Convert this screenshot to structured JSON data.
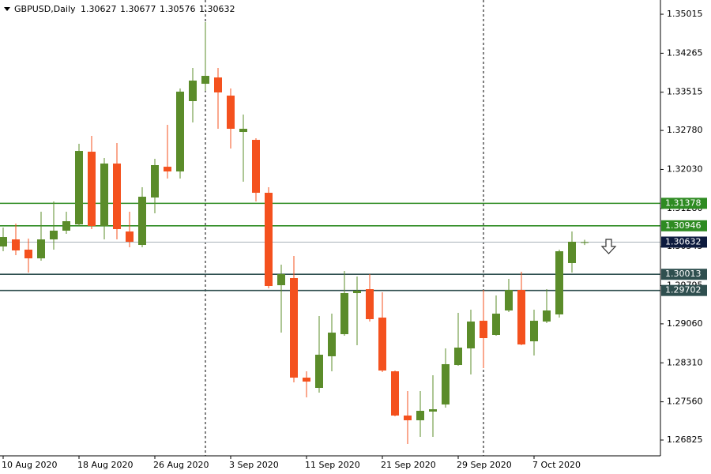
{
  "chart_data": {
    "type": "candlestick",
    "symbol": "GBPUSD,Daily",
    "categories": [
      "10 Aug 2020",
      null,
      null,
      null,
      null,
      null,
      "18 Aug 2020",
      null,
      null,
      null,
      null,
      null,
      "26 Aug 2020",
      null,
      null,
      null,
      null,
      null,
      "3 Sep 2020",
      null,
      null,
      null,
      null,
      null,
      "11 Sep 2020",
      null,
      null,
      null,
      null,
      null,
      "21 Sep 2020",
      null,
      null,
      null,
      null,
      null,
      "29 Sep 2020",
      null,
      null,
      null,
      null,
      null,
      "7 Oct 2020",
      null,
      null,
      null,
      null
    ],
    "open": [
      1.30548,
      1.30684,
      1.30487,
      1.3032,
      1.30684,
      1.30852,
      1.30973,
      1.32371,
      1.30943,
      1.32143,
      1.30836,
      1.30578,
      1.3149,
      1.32082,
      1.31991,
      1.33344,
      1.33678,
      1.33799,
      1.3345,
      1.32751,
      1.32599,
      1.31581,
      1.29803,
      1.2994,
      1.28025,
      1.27828,
      1.28436,
      1.28861,
      1.29651,
      1.29727,
      1.2918,
      1.28147,
      1.27296,
      1.27205,
      1.27372,
      1.27509,
      1.28268,
      1.28588,
      1.29119,
      1.28846,
      1.29317,
      1.29712,
      1.28724,
      1.29104,
      1.29241,
      1.30229,
      1.30627
    ],
    "high": [
      1.30912,
      1.30988,
      1.307,
      1.31216,
      1.31414,
      1.31216,
      1.32523,
      1.32675,
      1.3225,
      1.32538,
      1.31216,
      1.31687,
      1.32234,
      1.32888,
      1.33587,
      1.33982,
      1.34863,
      1.33982,
      1.33587,
      1.33085,
      1.32629,
      1.31687,
      1.30198,
      1.30365,
      1.28147,
      1.29211,
      1.29256,
      1.30077,
      1.2997,
      1.30016,
      1.29666,
      1.28162,
      1.27767,
      1.27767,
      1.28071,
      1.28588,
      1.29271,
      1.29332,
      1.29712,
      1.29606,
      1.29925,
      1.30061,
      1.29332,
      1.29727,
      1.30487,
      1.30836,
      1.30677
    ],
    "low": [
      1.30456,
      1.30381,
      1.30046,
      1.30274,
      1.30487,
      1.30791,
      1.30943,
      1.30882,
      1.30684,
      1.30684,
      1.30532,
      1.30532,
      1.31186,
      1.31854,
      1.31854,
      1.32933,
      1.33541,
      1.32812,
      1.32432,
      1.31794,
      1.31414,
      1.29742,
      1.28891,
      1.27934,
      1.27645,
      1.27737,
      1.28147,
      1.28831,
      1.28648,
      1.29104,
      1.28132,
      1.27281,
      1.26749,
      1.26886,
      1.26886,
      1.27448,
      1.28253,
      1.28086,
      1.28208,
      1.28831,
      1.29286,
      1.28648,
      1.28451,
      1.29074,
      1.2918,
      1.30046,
      1.30576
    ],
    "close": [
      1.3073,
      1.30472,
      1.3032,
      1.30684,
      1.30852,
      1.31034,
      1.32386,
      1.30943,
      1.32143,
      1.30882,
      1.30639,
      1.31505,
      1.32113,
      1.31991,
      1.33526,
      1.33739,
      1.3383,
      1.33511,
      1.32812,
      1.32812,
      1.31581,
      1.29788,
      1.30016,
      1.28025,
      1.27949,
      1.28466,
      1.28891,
      1.29651,
      1.29697,
      1.2915,
      1.28162,
      1.27296,
      1.27205,
      1.27387,
      1.27417,
      1.28284,
      1.28603,
      1.29104,
      1.28785,
      1.29256,
      1.29712,
      1.28663,
      1.29119,
      1.29317,
      1.30456,
      1.30639,
      1.30632
    ],
    "up_color": "#5b8c2a",
    "down_color": "#f4511e",
    "ylim": [
      1.26521,
      1.35289
    ],
    "yticks": [
      1.35015,
      1.34265,
      1.33515,
      {
        "value": 1.3278,
        "label": "1.32780"
      },
      {
        "value": 1.3203,
        "label": "1.32030"
      },
      {
        "value": 1.3128,
        "label": "1.31280"
      },
      1.30545,
      1.29795,
      {
        "value": 1.2906,
        "label": "1.29060"
      },
      {
        "value": 1.2831,
        "label": "1.28310"
      },
      {
        "value": 1.2756,
        "label": "1.27560"
      },
      1.26825
    ],
    "levels": [
      {
        "value": 1.31378,
        "line_color": "#2e8b22",
        "label_color": "#2e8b22"
      },
      {
        "value": 1.30946,
        "line_color": "#2e8b22",
        "label_color": "#2e8b22"
      },
      {
        "value": 1.30632,
        "line_color": "#a8b0b8",
        "label_color": "#0d1b3e"
      },
      {
        "value": 1.30013,
        "line_color": "#2f4f4f",
        "label_color": "#2f4f4f"
      },
      {
        "value": 1.29702,
        "line_color": "#2f4f4f",
        "label_color": "#2f4f4f"
      }
    ],
    "grid": false
  }
}
